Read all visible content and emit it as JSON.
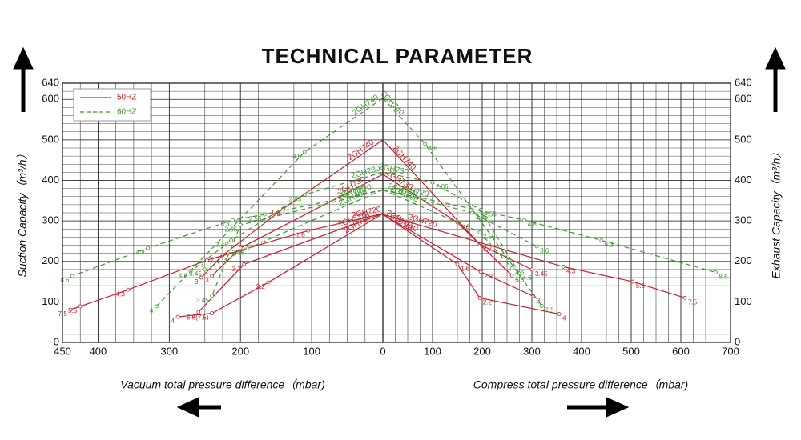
{
  "title": "TECHNICAL PARAMETER",
  "legend": [
    {
      "label": "50HZ",
      "color": "#c8202a",
      "dashed": false
    },
    {
      "label": "60HZ",
      "color": "#3c9a2c",
      "dashed": true
    }
  ],
  "chart_data": [
    {
      "type": "line",
      "y_axis": "left",
      "x_label": "Vacuum total pressure difference（mbar)",
      "y_label": "Suction Capacity（m³/h）",
      "xlim": [
        450,
        0
      ],
      "ylim": [
        0,
        640
      ],
      "xticks": [
        450,
        400,
        300,
        200,
        100
      ],
      "yticks": [
        0,
        100,
        200,
        300,
        400,
        500,
        600,
        640
      ],
      "grid": true,
      "x_grid_step": 25,
      "y_grid_step": 20,
      "series": [
        {
          "name": "2GH740",
          "color": "#c8202a",
          "dashed": false,
          "x": [
            0,
            140,
            225,
            255
          ],
          "values": [
            500,
            330,
            215,
            160
          ],
          "point_labels": [
            null,
            "1.6",
            "2.2",
            "3"
          ]
        },
        {
          "name": "2GH730",
          "color": "#c8202a",
          "dashed": false,
          "x": [
            0,
            200,
            240
          ],
          "values": [
            415,
            233,
            164
          ],
          "point_labels": [
            null,
            "2.2",
            "3"
          ]
        },
        {
          "name": "2GH720",
          "color": "#c8202a",
          "dashed": false,
          "x": [
            0,
            105,
            247,
            358,
            425,
            439
          ],
          "values": [
            318,
            276,
            203,
            130,
            89,
            81
          ],
          "point_labels": [
            null,
            "1.6",
            "3",
            "4.3",
            "5.5",
            "7.5"
          ]
        },
        {
          "name": "2GH710",
          "color": "#c8202a",
          "dashed": false,
          "x": [
            0,
            195,
            259
          ],
          "values": [
            318,
            193,
            75
          ],
          "point_labels": [
            null,
            "2.2",
            "4"
          ]
        },
        {
          "name": "2GH790",
          "color": "#c8202a",
          "dashed": false,
          "x": [
            0,
            161,
            240,
            288
          ],
          "values": [
            318,
            148,
            72,
            63
          ],
          "point_labels": [
            null,
            "2.2",
            "5.5(7.5)",
            "4"
          ]
        },
        {
          "name": "2GH740",
          "color": "#3c9a2c",
          "dashed": true,
          "x": [
            0,
            110,
            318
          ],
          "values": [
            603,
            470,
            89
          ],
          "point_labels": [
            null,
            "4.6",
            "4"
          ]
        },
        {
          "name": "2GH730",
          "color": "#3c9a2c",
          "dashed": true,
          "x": [
            0,
            110,
            213,
            270
          ],
          "values": [
            420,
            365,
            252,
            175
          ],
          "point_labels": [
            null,
            "2.05",
            "3.45",
            "4.6"
          ]
        },
        {
          "name": "2GH720",
          "color": "#3c9a2c",
          "dashed": true,
          "x": [
            0,
            166,
            211,
            330,
            436
          ],
          "values": [
            377,
            316,
            302,
            233,
            164
          ],
          "point_labels": [
            null,
            "2.55",
            "6.3",
            "4.8",
            "8.6"
          ]
        },
        {
          "name": "2GH710",
          "color": "#3c9a2c",
          "dashed": true,
          "x": [
            0,
            200,
            240
          ],
          "values": [
            377,
            290,
            115
          ],
          "point_labels": [
            null,
            "2.05",
            "3.45"
          ]
        },
        {
          "name": "2GH790",
          "color": "#3c9a2c",
          "dashed": true,
          "x": [
            0,
            190,
            250
          ],
          "values": [
            377,
            232,
            180
          ],
          "point_labels": [
            null,
            "2.05",
            "3.45"
          ]
        }
      ]
    },
    {
      "type": "line",
      "y_axis": "right",
      "x_label": "Compress total pressure difference（mbar)",
      "y_label": "Exhaust Capacity（m³/h）",
      "xlim": [
        0,
        700
      ],
      "ylim": [
        0,
        640
      ],
      "xticks": [
        0,
        100,
        200,
        300,
        400,
        500,
        600,
        700
      ],
      "yticks": [
        0,
        100,
        200,
        300,
        400,
        500,
        600,
        640
      ],
      "grid": true,
      "x_grid_step": 25,
      "y_grid_step": 20,
      "series": [
        {
          "name": "2GH740",
          "color": "#c8202a",
          "dashed": false,
          "x": [
            0,
            195,
            300
          ],
          "values": [
            500,
            242,
            180
          ],
          "point_labels": [
            null,
            "2.2",
            "3.45"
          ]
        },
        {
          "name": "2GH730",
          "color": "#c8202a",
          "dashed": false,
          "x": [
            0,
            150,
            260
          ],
          "values": [
            415,
            296,
            165
          ],
          "point_labels": [
            null,
            "1.6",
            "5.5"
          ]
        },
        {
          "name": "2GH720",
          "color": "#c8202a",
          "dashed": false,
          "x": [
            0,
            363,
            503,
            608
          ],
          "values": [
            316,
            187,
            150,
            110
          ],
          "point_labels": [
            null,
            "4.3",
            "5.5",
            "7.5"
          ]
        },
        {
          "name": "2GH710",
          "color": "#c8202a",
          "dashed": false,
          "x": [
            0,
            197,
            303
          ],
          "values": [
            316,
            174,
            114
          ],
          "point_labels": [
            null,
            "2.2",
            "3"
          ]
        },
        {
          "name": "2GH790",
          "color": "#c8202a",
          "dashed": false,
          "x": [
            0,
            150,
            195,
            355
          ],
          "values": [
            316,
            193,
            110,
            70
          ],
          "point_labels": [
            null,
            "1.6",
            "2.2",
            "4"
          ]
        },
        {
          "name": "2GH740",
          "color": "#3c9a2c",
          "dashed": true,
          "x": [
            0,
            85,
            320
          ],
          "values": [
            603,
            490,
            90
          ],
          "point_labels": [
            null,
            "4.6",
            "7.5"
          ]
        },
        {
          "name": "2GH730",
          "color": "#3c9a2c",
          "dashed": true,
          "x": [
            0,
            100,
            197,
            275
          ],
          "values": [
            420,
            395,
            327,
            170
          ],
          "point_labels": [
            null,
            "2.05",
            "2.55",
            "4.6"
          ]
        },
        {
          "name": "2GH720",
          "color": "#3c9a2c",
          "dashed": true,
          "x": [
            0,
            285,
            440,
            670
          ],
          "values": [
            377,
            302,
            252,
            173
          ],
          "point_labels": [
            null,
            "4.8",
            "6.3",
            "8.6"
          ]
        },
        {
          "name": "2GH710",
          "color": "#3c9a2c",
          "dashed": true,
          "x": [
            0,
            180,
            310
          ],
          "values": [
            377,
            320,
            237
          ],
          "point_labels": [
            null,
            "3.45",
            "8.6"
          ]
        },
        {
          "name": "2GH790",
          "color": "#3c9a2c",
          "dashed": true,
          "x": [
            0,
            195,
            260
          ],
          "values": [
            377,
            272,
            183
          ],
          "point_labels": [
            null,
            "2.55",
            "4.6"
          ]
        }
      ]
    }
  ]
}
